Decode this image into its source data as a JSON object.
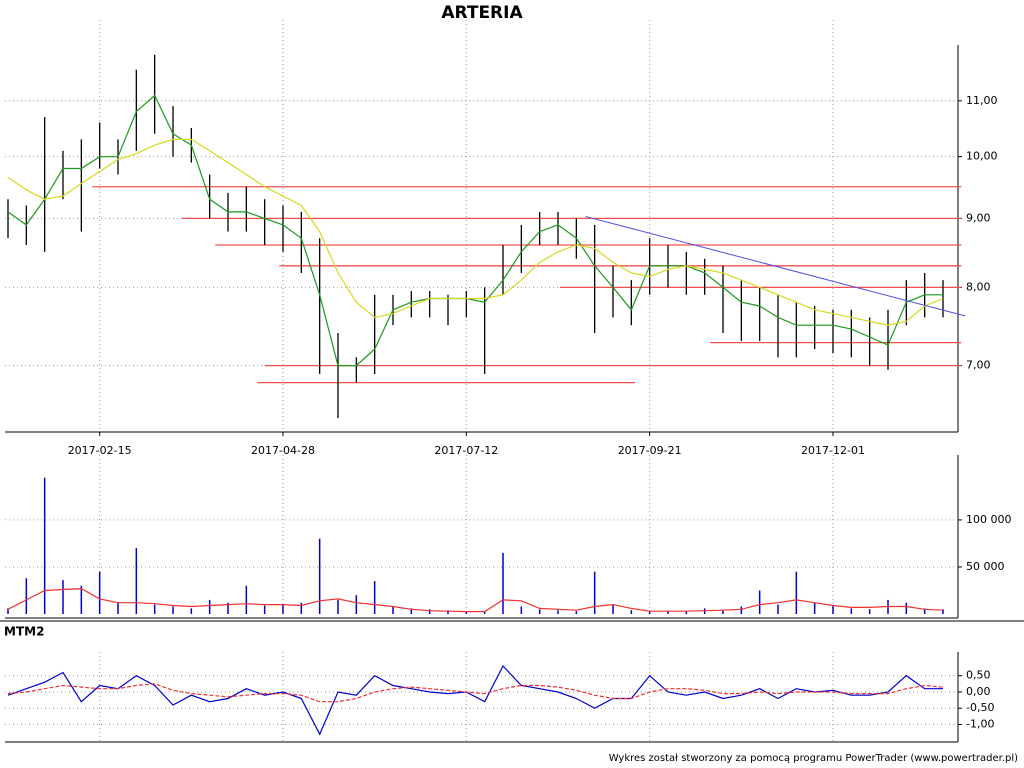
{
  "chart_data": [
    {
      "type": "stock",
      "title": "ARTERIA",
      "categories": [
        null,
        null,
        null,
        null,
        null,
        "2017-02-15",
        null,
        null,
        null,
        null,
        null,
        null,
        null,
        null,
        null,
        "2017-04-28",
        null,
        null,
        null,
        null,
        null,
        null,
        null,
        null,
        null,
        "2017-07-12",
        null,
        null,
        null,
        null,
        null,
        null,
        null,
        null,
        null,
        "2017-09-21",
        null,
        null,
        null,
        null,
        null,
        null,
        null,
        null,
        null,
        "2017-12-01",
        null,
        null,
        null,
        null,
        null,
        null
      ],
      "high": [
        9.3,
        9.2,
        10.7,
        10.1,
        10.3,
        10.6,
        10.3,
        11.6,
        11.9,
        10.9,
        10.5,
        9.7,
        9.4,
        9.5,
        9.3,
        9.2,
        9.1,
        8.7,
        7.4,
        7.1,
        7.9,
        7.9,
        7.95,
        7.95,
        7.9,
        7.95,
        8.0,
        8.6,
        8.9,
        9.1,
        9.1,
        9.0,
        8.9,
        8.3,
        8.1,
        8.7,
        8.6,
        8.5,
        8.4,
        8.3,
        8.1,
        8.0,
        7.9,
        7.8,
        7.75,
        7.7,
        7.7,
        7.6,
        7.7,
        8.1,
        8.2,
        8.1
      ],
      "low": [
        8.7,
        8.6,
        8.5,
        9.3,
        8.8,
        9.8,
        9.7,
        10.1,
        10.4,
        10.0,
        9.9,
        9.0,
        8.8,
        8.8,
        8.6,
        8.5,
        8.2,
        6.9,
        6.4,
        6.8,
        6.9,
        7.5,
        7.6,
        7.6,
        7.5,
        7.6,
        6.9,
        7.9,
        8.2,
        8.6,
        8.6,
        8.4,
        7.4,
        7.6,
        7.5,
        7.9,
        8.0,
        7.9,
        7.9,
        7.4,
        7.3,
        7.3,
        7.1,
        7.1,
        7.2,
        7.15,
        7.1,
        7.0,
        6.95,
        7.5,
        7.6,
        7.6
      ],
      "bar_color": "#000000",
      "series": [
        {
          "color": "#1a9a1a",
          "values": [
            9.1,
            8.9,
            9.3,
            9.8,
            9.8,
            10.0,
            10.0,
            10.8,
            11.1,
            10.4,
            10.2,
            9.3,
            9.1,
            9.1,
            9.0,
            8.9,
            8.7,
            7.9,
            7.0,
            7.0,
            7.2,
            7.7,
            7.8,
            7.85,
            7.85,
            7.85,
            7.8,
            8.1,
            8.5,
            8.8,
            8.9,
            8.7,
            8.3,
            8.0,
            7.7,
            8.3,
            8.3,
            8.3,
            8.2,
            8.0,
            7.8,
            7.75,
            7.6,
            7.5,
            7.5,
            7.5,
            7.45,
            7.35,
            7.25,
            7.8,
            7.9,
            7.9
          ]
        },
        {
          "color": "#d8d820",
          "values": [
            9.65,
            9.45,
            9.3,
            9.35,
            9.55,
            9.75,
            9.95,
            10.05,
            10.2,
            10.3,
            10.3,
            10.1,
            9.9,
            9.7,
            9.5,
            9.35,
            9.2,
            8.8,
            8.2,
            7.8,
            7.6,
            7.65,
            7.75,
            7.85,
            7.85,
            7.85,
            7.85,
            7.9,
            8.1,
            8.35,
            8.5,
            8.6,
            8.55,
            8.35,
            8.2,
            8.15,
            8.25,
            8.3,
            8.25,
            8.2,
            8.1,
            8.0,
            7.9,
            7.8,
            7.7,
            7.65,
            7.6,
            7.55,
            7.5,
            7.55,
            7.75,
            7.85
          ]
        }
      ],
      "hlines": {
        "color": "#f05050",
        "lines": [
          {
            "value": 9.5,
            "start": 4.6,
            "end": 52.0
          },
          {
            "value": 9.0,
            "start": 9.5,
            "end": 52.0
          },
          {
            "value": 8.6,
            "start": 11.3,
            "end": 52.0
          },
          {
            "value": 8.3,
            "start": 14.8,
            "end": 52.0
          },
          {
            "value": 8.0,
            "start": 30.1,
            "end": 52.0
          },
          {
            "value": 7.28,
            "start": 38.3,
            "end": 52.0
          },
          {
            "value": 7.0,
            "start": 14.0,
            "end": 52.0
          },
          {
            "value": 6.8,
            "start": 13.6,
            "end": 34.2
          }
        ]
      },
      "trendline": {
        "color": "#5050e0",
        "x": [
          31.5,
          52.2
        ],
        "y": [
          9.03,
          7.62
        ]
      },
      "log": true,
      "grid": true,
      "ylim": [
        6.25,
        12.1
      ],
      "yticks": [
        {
          "value": 7,
          "label": "7,00"
        },
        {
          "value": 8,
          "label": "8,00"
        },
        {
          "value": 9,
          "label": "9,00"
        },
        {
          "value": 10,
          "label": "10,00"
        },
        {
          "value": 11,
          "label": "11,00"
        }
      ]
    },
    {
      "type": "volume",
      "values": [
        6000,
        38000,
        145000,
        36000,
        30000,
        45000,
        12000,
        70000,
        10000,
        8000,
        6000,
        15000,
        12000,
        30000,
        9000,
        10000,
        12000,
        80000,
        15000,
        20000,
        35000,
        8000,
        6000,
        5000,
        4000,
        3000,
        3000,
        65000,
        8000,
        5000,
        4000,
        3000,
        45000,
        10000,
        4000,
        3000,
        3000,
        3000,
        6000,
        4000,
        8000,
        25000,
        10000,
        45000,
        12000,
        9000,
        6000,
        5000,
        15000,
        12000,
        6000,
        5000
      ],
      "color": "#0000cc",
      "average": {
        "color": "#f03030",
        "values": [
          5000,
          15000,
          25000,
          26000,
          27000,
          16000,
          12000,
          12000,
          11000,
          9000,
          8000,
          9000,
          10000,
          11000,
          10000,
          10000,
          9000,
          14000,
          16000,
          12000,
          10000,
          8000,
          5000,
          3500,
          3000,
          2500,
          2500,
          15000,
          14000,
          6000,
          5000,
          4000,
          8000,
          10000,
          6000,
          3000,
          3000,
          3000,
          3500,
          4000,
          5000,
          10000,
          12000,
          15000,
          12000,
          9000,
          7000,
          7000,
          8000,
          8000,
          5000,
          4000
        ]
      },
      "grid": true,
      "ylim": [
        0,
        169000
      ],
      "yticks": [
        {
          "value": 50000,
          "label": "50 000"
        },
        {
          "value": 100000,
          "label": "100 000"
        }
      ]
    },
    {
      "type": "line",
      "title": "MTM2",
      "series": [
        {
          "color": "#0000cc",
          "values": [
            -0.1,
            0.1,
            0.3,
            0.6,
            -0.3,
            0.2,
            0.1,
            0.5,
            0.2,
            -0.4,
            -0.1,
            -0.3,
            -0.2,
            0.1,
            -0.1,
            0.0,
            -0.2,
            -1.3,
            0.0,
            -0.1,
            0.5,
            0.2,
            0.1,
            0.0,
            -0.05,
            0.0,
            -0.3,
            0.8,
            0.2,
            0.1,
            0.0,
            -0.2,
            -0.5,
            -0.2,
            -0.2,
            0.5,
            0.0,
            -0.1,
            0.0,
            -0.2,
            -0.1,
            0.1,
            -0.2,
            0.1,
            0.0,
            0.05,
            -0.1,
            -0.1,
            0.0,
            0.5,
            0.1,
            0.1
          ]
        },
        {
          "color": "#f03030",
          "dashed": true,
          "values": [
            -0.05,
            0.0,
            0.1,
            0.2,
            0.15,
            0.1,
            0.1,
            0.2,
            0.25,
            0.05,
            -0.05,
            -0.1,
            -0.15,
            -0.1,
            -0.05,
            -0.05,
            -0.1,
            -0.3,
            -0.3,
            -0.2,
            0.0,
            0.1,
            0.15,
            0.1,
            0.05,
            0.0,
            -0.05,
            0.1,
            0.2,
            0.2,
            0.15,
            0.05,
            -0.1,
            -0.2,
            -0.2,
            0.0,
            0.1,
            0.1,
            0.05,
            -0.05,
            -0.05,
            0.0,
            -0.05,
            0.0,
            0.0,
            0.0,
            -0.05,
            -0.05,
            -0.05,
            0.1,
            0.2,
            0.15
          ]
        }
      ],
      "grid": true,
      "ylim": [
        -1.54,
        1.23
      ],
      "yticks": [
        {
          "value": -1,
          "label": "-1,00"
        },
        {
          "value": -0.5,
          "label": "-0,50"
        },
        {
          "value": 0,
          "label": "0,00"
        },
        {
          "value": 0.5,
          "label": "0,50"
        }
      ]
    }
  ],
  "footer": "Wykres został stworzony za pomocą programu PowerTrader (www.powertrader.pl)"
}
